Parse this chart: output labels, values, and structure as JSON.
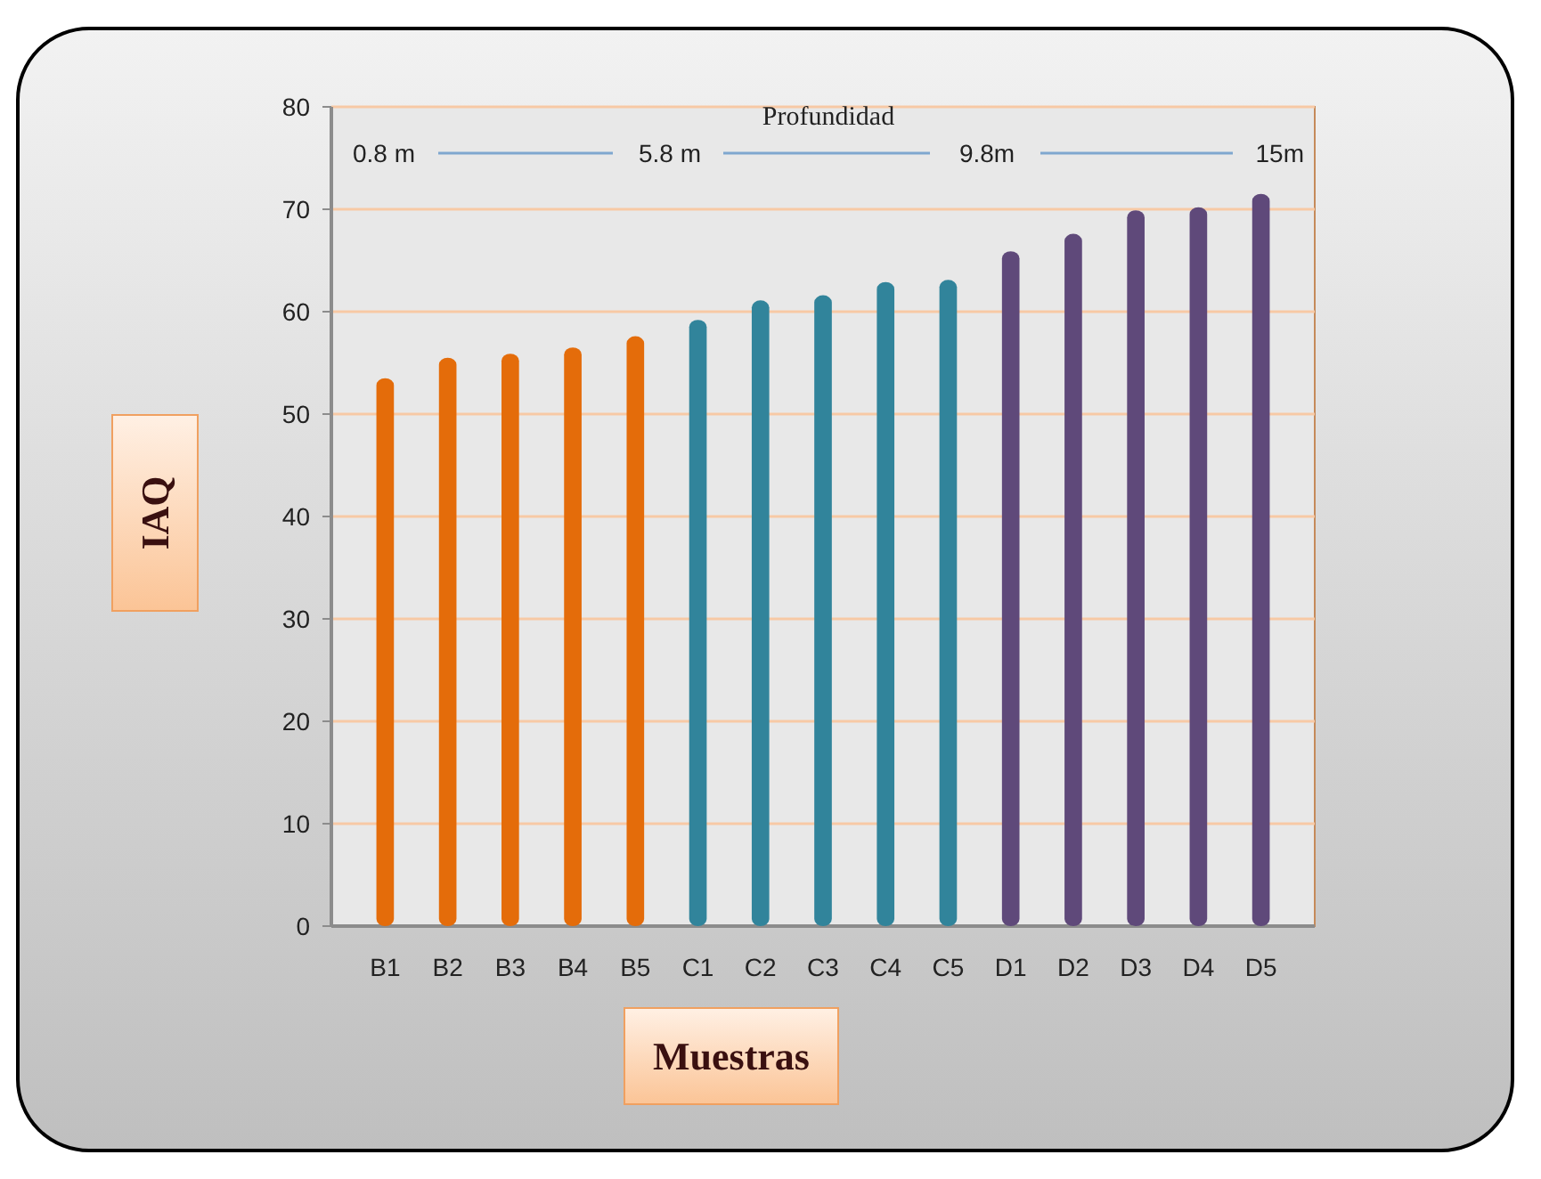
{
  "chart_data": {
    "type": "bar",
    "xlabel": "Muestras",
    "ylabel": "IAQ",
    "categories": [
      "B1",
      "B2",
      "B3",
      "B4",
      "B5",
      "C1",
      "C2",
      "C3",
      "C4",
      "C5",
      "D1",
      "D2",
      "D3",
      "D4",
      "D5"
    ],
    "values": [
      53.5,
      55.5,
      55.9,
      56.5,
      57.6,
      59.2,
      61.1,
      61.6,
      62.9,
      63.1,
      65.9,
      67.6,
      69.9,
      70.2,
      71.5
    ],
    "colors": [
      "#e46c0a",
      "#e46c0a",
      "#e46c0a",
      "#e46c0a",
      "#e46c0a",
      "#31849b",
      "#31849b",
      "#31849b",
      "#31849b",
      "#31849b",
      "#5f497a",
      "#5f497a",
      "#5f497a",
      "#5f497a",
      "#5f497a"
    ],
    "ylim": [
      0,
      80
    ],
    "yticks": [
      0,
      10,
      20,
      30,
      40,
      50,
      60,
      70,
      80
    ],
    "grid": "y",
    "annotations": [
      "Profundidad",
      "0.8 m",
      "5.8 m",
      "9.8m",
      "15m"
    ]
  }
}
